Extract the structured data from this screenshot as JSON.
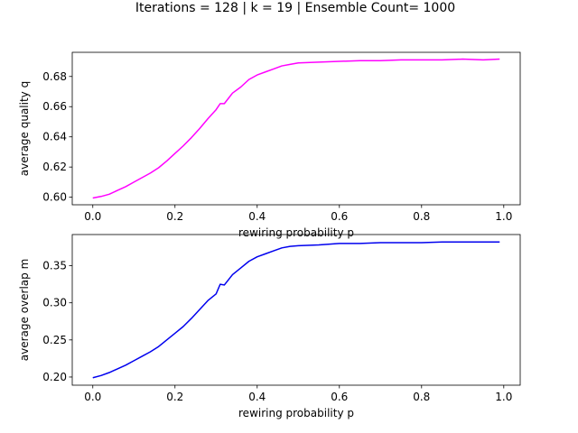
{
  "chart_data": {
    "title": "Iterations = 128 |  k = 19 | Ensemble Count= 1000",
    "subplots": [
      {
        "type": "line",
        "xlabel": "rewiring probability p",
        "ylabel": "average quality q",
        "xlim": [
          -0.05,
          1.04
        ],
        "ylim": [
          0.595,
          0.696
        ],
        "xticks": [
          0.0,
          0.2,
          0.4,
          0.6,
          0.8,
          1.0
        ],
        "xtick_labels": [
          "0.0",
          "0.2",
          "0.4",
          "0.6",
          "0.8",
          "1.0"
        ],
        "yticks": [
          0.6,
          0.62,
          0.64,
          0.66,
          0.68
        ],
        "ytick_labels": [
          "0.60",
          "0.62",
          "0.64",
          "0.66",
          "0.68"
        ],
        "grid": false,
        "series": [
          {
            "color": "#ff00ff",
            "x": [
              0.0,
              0.02,
              0.04,
              0.06,
              0.08,
              0.1,
              0.12,
              0.14,
              0.16,
              0.18,
              0.2,
              0.22,
              0.24,
              0.26,
              0.28,
              0.3,
              0.31,
              0.32,
              0.34,
              0.36,
              0.38,
              0.4,
              0.42,
              0.44,
              0.46,
              0.48,
              0.5,
              0.55,
              0.6,
              0.65,
              0.7,
              0.75,
              0.8,
              0.85,
              0.9,
              0.95,
              0.99
            ],
            "y": [
              0.5995,
              0.6005,
              0.602,
              0.6045,
              0.607,
              0.61,
              0.613,
              0.616,
              0.6195,
              0.624,
              0.629,
              0.634,
              0.6395,
              0.6455,
              0.652,
              0.658,
              0.662,
              0.662,
              0.669,
              0.673,
              0.678,
              0.681,
              0.683,
              0.685,
              0.687,
              0.688,
              0.689,
              0.6895,
              0.69,
              0.6905,
              0.6905,
              0.691,
              0.691,
              0.691,
              0.6915,
              0.691,
              0.6915
            ]
          }
        ]
      },
      {
        "type": "line",
        "xlabel": "rewiring probability p",
        "ylabel": "average overlap m",
        "xlim": [
          -0.05,
          1.04
        ],
        "ylim": [
          0.189,
          0.392
        ],
        "xticks": [
          0.0,
          0.2,
          0.4,
          0.6,
          0.8,
          1.0
        ],
        "xtick_labels": [
          "0.0",
          "0.2",
          "0.4",
          "0.6",
          "0.8",
          "1.0"
        ],
        "yticks": [
          0.2,
          0.25,
          0.3,
          0.35
        ],
        "ytick_labels": [
          "0.20",
          "0.25",
          "0.30",
          "0.35"
        ],
        "grid": false,
        "series": [
          {
            "color": "#0000ee",
            "x": [
              0.0,
              0.02,
              0.04,
              0.06,
              0.08,
              0.1,
              0.12,
              0.14,
              0.16,
              0.18,
              0.2,
              0.22,
              0.24,
              0.26,
              0.28,
              0.3,
              0.31,
              0.32,
              0.34,
              0.36,
              0.38,
              0.4,
              0.42,
              0.44,
              0.46,
              0.48,
              0.5,
              0.55,
              0.6,
              0.65,
              0.7,
              0.75,
              0.8,
              0.85,
              0.9,
              0.95,
              0.99
            ],
            "y": [
              0.199,
              0.202,
              0.206,
              0.211,
              0.216,
              0.222,
              0.228,
              0.234,
              0.241,
              0.25,
              0.259,
              0.268,
              0.279,
              0.291,
              0.303,
              0.312,
              0.325,
              0.324,
              0.338,
              0.347,
              0.356,
              0.362,
              0.366,
              0.37,
              0.374,
              0.376,
              0.377,
              0.378,
              0.38,
              0.38,
              0.381,
              0.381,
              0.381,
              0.382,
              0.382,
              0.382,
              0.382
            ]
          }
        ]
      }
    ]
  }
}
